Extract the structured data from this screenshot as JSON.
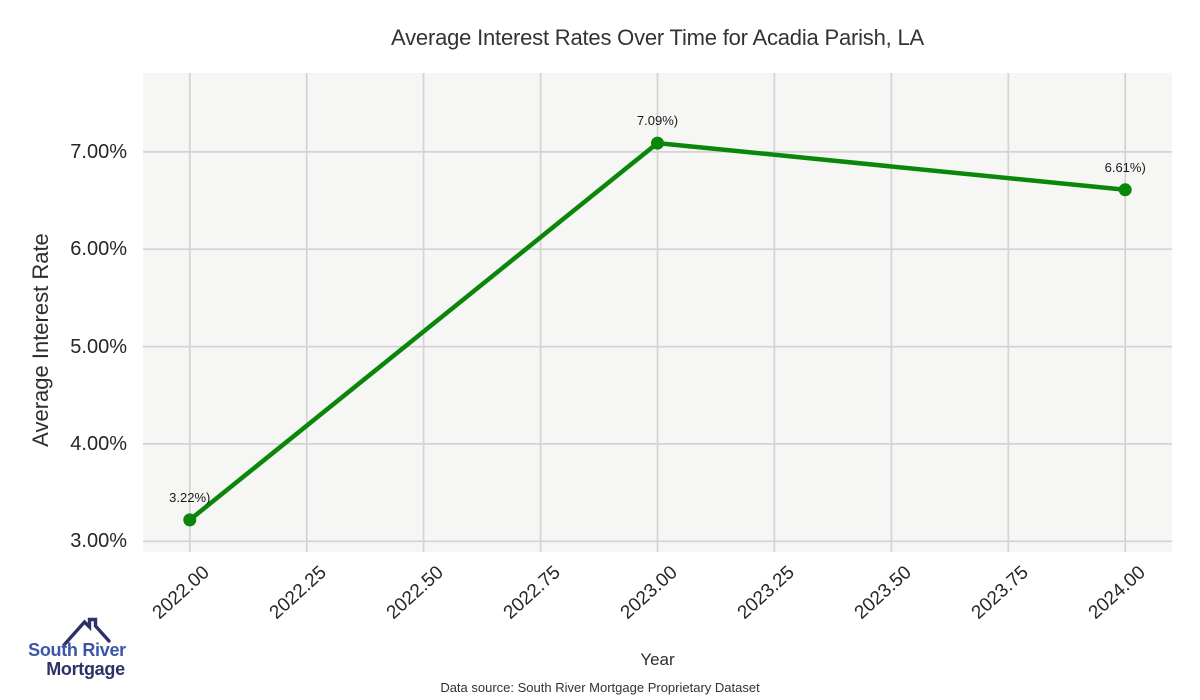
{
  "chart_data": {
    "type": "line",
    "title": "Average Interest Rates Over Time for Acadia Parish, LA",
    "xlabel": "Year",
    "ylabel": "Average Interest Rate",
    "x": [
      2022.0,
      2023.0,
      2024.0
    ],
    "y": [
      3.22,
      7.09,
      6.61
    ],
    "point_labels": [
      "3.22%)",
      "7.09%)",
      "6.61%)"
    ],
    "series": [
      {
        "name": "Average Interest Rate",
        "values": [
          3.22,
          7.09,
          6.61
        ]
      }
    ],
    "xtick_values": [
      2022.0,
      2022.25,
      2022.5,
      2022.75,
      2023.0,
      2023.25,
      2023.5,
      2023.75,
      2024.0
    ],
    "xtick_labels": [
      "2022.00",
      "2022.25",
      "2022.50",
      "2022.75",
      "2023.00",
      "2023.25",
      "2023.50",
      "2023.75",
      "2024.00"
    ],
    "ytick_values": [
      3,
      4,
      5,
      6,
      7
    ],
    "ytick_labels": [
      "3.00%",
      "4.00%",
      "5.00%",
      "6.00%",
      "7.00%"
    ],
    "xlim": [
      2021.9,
      2024.1
    ],
    "ylim": [
      2.89,
      7.81
    ],
    "grid": true,
    "legend": "none",
    "line_color": "#0a870a",
    "background_color": "#f6f6f4",
    "gridline_color": "#d3d3d3"
  },
  "footer": {
    "source_text": "Data source: South River Mortgage Proprietary Dataset"
  },
  "logo": {
    "name": "South River Mortgage",
    "line1": "South River",
    "line2": "Mortgage",
    "colors": {
      "primary": "#3d55a8",
      "dark": "#2c3166"
    }
  }
}
